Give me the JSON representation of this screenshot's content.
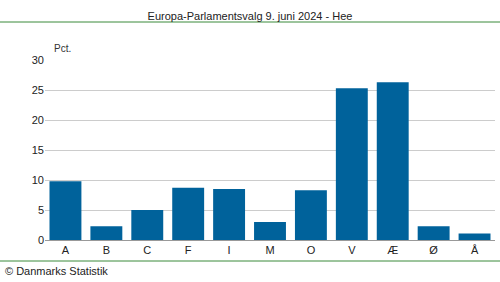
{
  "chart_data": {
    "type": "bar",
    "title": "Europa-Parlamentsvalg 9. juni 2024 - Hee",
    "ylabel": "Pct.",
    "source": "© Danmarks Statistik",
    "categories": [
      "A",
      "B",
      "C",
      "F",
      "I",
      "M",
      "O",
      "V",
      "Æ",
      "Ø",
      "Å"
    ],
    "values": [
      9.8,
      2.3,
      5.0,
      8.7,
      8.5,
      3.0,
      8.3,
      25.3,
      26.3,
      2.3,
      1.1
    ],
    "color": "#00629b",
    "ylim": [
      0,
      30
    ],
    "yticks": [
      0,
      5,
      10,
      15,
      20,
      25,
      30
    ],
    "grid": true
  }
}
